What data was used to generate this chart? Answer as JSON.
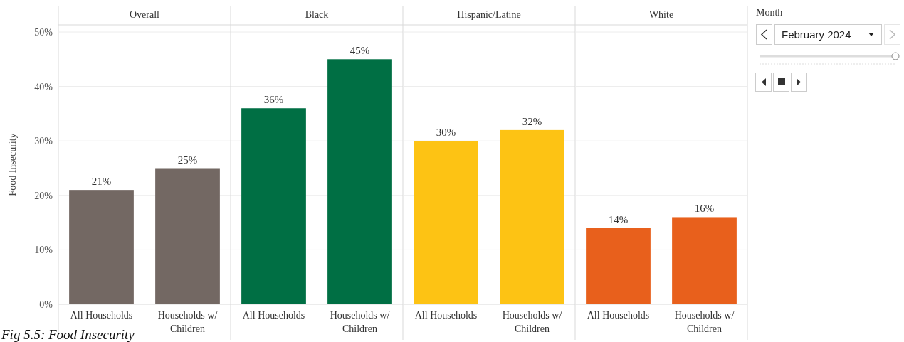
{
  "chart_data": [
    {
      "type": "bar",
      "title": "Overall",
      "ylabel": "Food Insecurity",
      "categories": [
        "All Households",
        "Households w/ Children"
      ],
      "values": [
        21,
        25
      ],
      "value_labels": [
        "21%",
        "25%"
      ],
      "color": "#736863",
      "ylim": [
        0,
        50
      ],
      "yticks": [
        {
          "value": 0,
          "label": "0%"
        },
        {
          "value": 10,
          "label": "10%"
        },
        {
          "value": 20,
          "label": "20%"
        },
        {
          "value": 30,
          "label": "30%"
        },
        {
          "value": 40,
          "label": "40%"
        },
        {
          "value": 50,
          "label": "50%"
        }
      ],
      "grid": "y",
      "annotations": [
        "Fig 5.5: Food Insecurity"
      ]
    },
    {
      "type": "bar",
      "title": "Black",
      "categories": [
        "All Households",
        "Households w/ Children"
      ],
      "values": [
        36,
        45
      ],
      "value_labels": [
        "36%",
        "45%"
      ],
      "color": "#006f44",
      "ylim": [
        0,
        50
      ],
      "yticks": [
        {
          "value": 0,
          "label": null
        },
        {
          "value": 10,
          "label": null
        },
        {
          "value": 20,
          "label": null
        },
        {
          "value": 30,
          "label": null
        },
        {
          "value": 40,
          "label": null
        },
        {
          "value": 50,
          "label": null
        }
      ],
      "grid": "y",
      "tick_labels": "x"
    },
    {
      "type": "bar",
      "title": "Hispanic/Latine",
      "categories": [
        "All Households",
        "Households w/ Children"
      ],
      "values": [
        30,
        32
      ],
      "value_labels": [
        "30%",
        "32%"
      ],
      "color": "#fdc314",
      "ylim": [
        0,
        50
      ],
      "yticks": [
        {
          "value": 0,
          "label": null
        },
        {
          "value": 10,
          "label": null
        },
        {
          "value": 20,
          "label": null
        },
        {
          "value": 30,
          "label": null
        },
        {
          "value": 40,
          "label": null
        },
        {
          "value": 50,
          "label": null
        }
      ],
      "grid": "y",
      "tick_labels": "x"
    },
    {
      "type": "bar",
      "title": "White",
      "categories": [
        "All Households",
        "Households w/ Children"
      ],
      "values": [
        14,
        16
      ],
      "value_labels": [
        "14%",
        "16%"
      ],
      "color": "#e8601c",
      "ylim": [
        0,
        50
      ],
      "yticks": [
        {
          "value": 0,
          "label": null
        },
        {
          "value": 10,
          "label": null
        },
        {
          "value": 20,
          "label": null
        },
        {
          "value": 30,
          "label": null
        },
        {
          "value": 40,
          "label": null
        },
        {
          "value": 50,
          "label": null
        }
      ],
      "grid": "y",
      "tick_labels": "x"
    },
    {
      "type": "other",
      "title": "Month",
      "annotations": [
        "February 2024"
      ]
    }
  ]
}
